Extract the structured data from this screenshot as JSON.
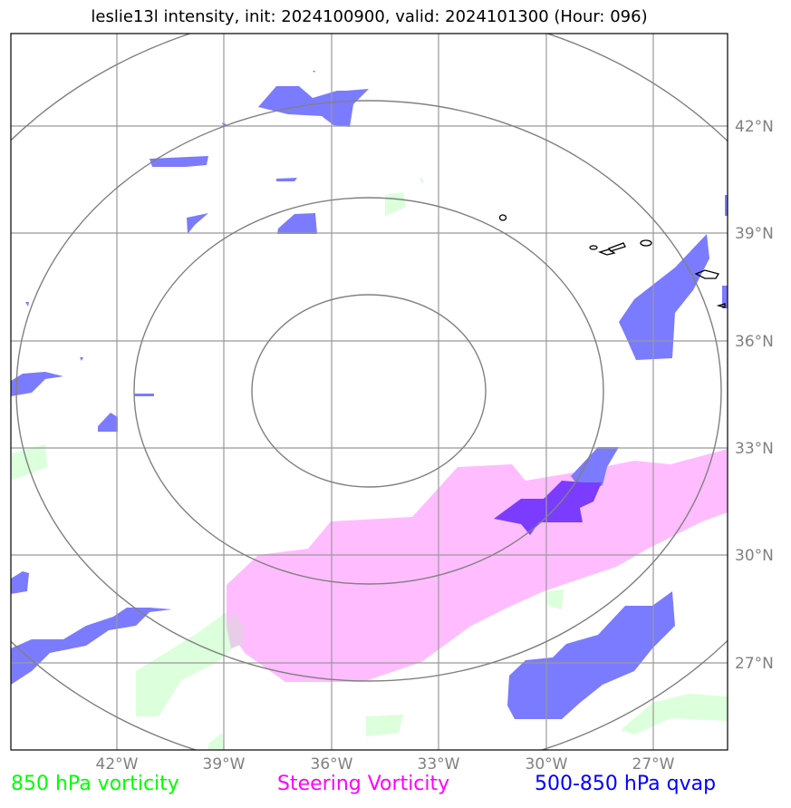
{
  "title": "leslie13l intensity, init: 2024100900, valid: 2024101300 (Hour: 096)",
  "map": {
    "lon_ticks": [
      "42°W",
      "39°W",
      "36°W",
      "33°W",
      "30°W",
      "27°W"
    ],
    "lat_ticks": [
      "42°N",
      "39°N",
      "36°N",
      "33°N",
      "30°N",
      "27°N"
    ]
  },
  "legend": {
    "vorticity_850": {
      "label": "850 hPa vorticity",
      "color": "#00ff00"
    },
    "steering_vorticity": {
      "label": "Steering Vorticity",
      "color": "#ff00ff"
    },
    "qvap_500_850": {
      "label": "500-850 hPa qvap",
      "color": "#0000ff"
    }
  },
  "colors": {
    "vorticity_fill": "#dcffdc",
    "steering_fill": "#ffbdff",
    "qvap_fill": "#7b7bff",
    "overlap_fill": "#7b3cff",
    "grid": "#999999",
    "range_rings": "#808080"
  }
}
